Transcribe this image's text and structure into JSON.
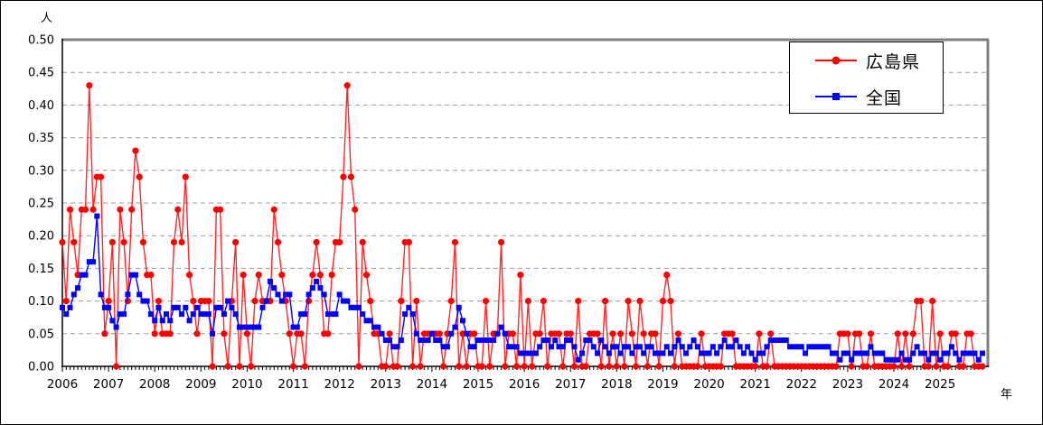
{
  "chart": {
    "y_unit_label": "人",
    "x_unit_label": "年",
    "y_tick_labels": [
      "0.00",
      "0.05",
      "0.10",
      "0.15",
      "0.20",
      "0.25",
      "0.30",
      "0.35",
      "0.40",
      "0.45",
      "0.50"
    ],
    "legend": [
      {
        "name": "広島県",
        "color": "#FF0000",
        "marker": "circle"
      },
      {
        "name": "全国",
        "color": "#0000FF",
        "marker": "square"
      }
    ],
    "frame_color": "#808080",
    "gridline_color": "#999999"
  },
  "chart_data": {
    "type": "line",
    "title": "",
    "xlabel": "年",
    "ylabel": "人",
    "ylim": [
      0.0,
      0.5
    ],
    "y_tick_step": 0.05,
    "grid": "dashed horizontal",
    "legend_position": "top-right inset box",
    "x_years": [
      2006,
      2007,
      2008,
      2009,
      2010,
      2011,
      2012,
      2013,
      2014,
      2015,
      2016,
      2017,
      2018,
      2019,
      2020,
      2021,
      2022,
      2023,
      2024,
      2025
    ],
    "x_granularity": "monthly",
    "series": [
      {
        "name": "広島県",
        "color": "#FF0000",
        "marker": "circle",
        "values_by_year": {
          "2006": [
            0.19,
            0.1,
            0.24,
            0.19,
            0.14,
            0.24,
            0.24,
            0.43,
            0.24,
            0.29,
            0.29,
            0.05
          ],
          "2007": [
            0.1,
            0.19,
            0.0,
            0.24,
            0.19,
            0.1,
            0.24,
            0.33,
            0.29,
            0.19,
            0.14,
            0.14
          ],
          "2008": [
            0.05,
            0.1,
            0.05,
            0.05,
            0.05,
            0.19,
            0.24,
            0.19,
            0.29,
            0.14,
            0.1,
            0.05
          ],
          "2009": [
            0.1,
            0.1,
            0.1,
            0.0,
            0.24,
            0.24,
            0.05,
            0.0,
            0.1,
            0.19,
            0.0,
            0.14
          ],
          "2010": [
            0.05,
            0.0,
            0.1,
            0.14,
            0.1,
            0.1,
            0.1,
            0.24,
            0.19,
            0.14,
            0.1,
            0.05
          ],
          "2011": [
            0.0,
            0.05,
            0.05,
            0.0,
            0.1,
            0.14,
            0.19,
            0.14,
            0.05,
            0.05,
            0.14,
            0.19
          ],
          "2012": [
            0.19,
            0.29,
            0.43,
            0.29,
            0.24,
            0.0,
            0.19,
            0.14,
            0.1,
            0.05,
            0.05,
            0.0
          ],
          "2013": [
            0.0,
            0.05,
            0.0,
            0.0,
            0.1,
            0.19,
            0.19,
            0.0,
            0.1,
            0.0,
            0.05,
            0.05
          ],
          "2014": [
            0.05,
            0.05,
            0.05,
            0.0,
            0.05,
            0.1,
            0.19,
            0.0,
            0.05,
            0.0,
            0.05,
            0.05
          ],
          "2015": [
            0.0,
            0.0,
            0.1,
            0.0,
            0.05,
            0.05,
            0.19,
            0.0,
            0.05,
            0.05,
            0.0,
            0.14
          ],
          "2016": [
            0.0,
            0.1,
            0.0,
            0.05,
            0.05,
            0.1,
            0.0,
            0.05,
            0.05,
            0.05,
            0.0,
            0.05
          ],
          "2017": [
            0.05,
            0.0,
            0.1,
            0.0,
            0.0,
            0.05,
            0.05,
            0.05,
            0.0,
            0.1,
            0.0,
            0.05
          ],
          "2018": [
            0.0,
            0.05,
            0.0,
            0.1,
            0.05,
            0.0,
            0.1,
            0.05,
            0.0,
            0.05,
            0.05,
            0.0
          ],
          "2019": [
            0.1,
            0.14,
            0.1,
            0.0,
            0.05,
            0.0,
            0.0,
            0.0,
            0.0,
            0.0,
            0.05,
            0.0
          ],
          "2020": [
            0.0,
            0.0,
            0.0,
            0.0,
            0.05,
            0.05,
            0.05,
            0.0,
            0.0,
            0.0,
            0.0,
            0.0
          ],
          "2021": [
            0.0,
            0.05,
            0.0,
            0.0,
            0.05,
            0.0,
            0.0,
            0.0,
            0.0,
            0.0,
            0.0,
            0.0
          ],
          "2022": [
            0.0,
            0.0,
            0.0,
            0.0,
            0.0,
            0.0,
            0.0,
            0.0,
            0.0,
            0.0,
            0.05,
            0.05
          ],
          "2023": [
            0.05,
            0.0,
            0.05,
            0.05,
            0.0,
            0.0,
            0.05,
            0.0,
            0.0,
            0.0,
            0.0,
            0.0
          ],
          "2024": [
            0.0,
            0.05,
            0.0,
            0.05,
            0.0,
            0.05,
            0.1,
            0.1,
            0.0,
            0.0,
            0.1,
            0.0
          ],
          "2025": [
            0.05,
            0.0,
            0.0,
            0.05,
            0.05,
            0.0,
            0.0,
            0.05,
            0.05,
            0.0,
            0.0,
            0.0
          ]
        }
      },
      {
        "name": "全国",
        "color": "#0000FF",
        "marker": "square",
        "values_by_year": {
          "2006": [
            0.09,
            0.08,
            0.09,
            0.11,
            0.12,
            0.14,
            0.14,
            0.16,
            0.16,
            0.23,
            0.11,
            0.09
          ],
          "2007": [
            0.09,
            0.07,
            0.06,
            0.08,
            0.08,
            0.11,
            0.14,
            0.14,
            0.11,
            0.1,
            0.1,
            0.08
          ],
          "2008": [
            0.07,
            0.09,
            0.07,
            0.08,
            0.07,
            0.09,
            0.09,
            0.08,
            0.09,
            0.07,
            0.08,
            0.09
          ],
          "2009": [
            0.08,
            0.08,
            0.08,
            0.05,
            0.09,
            0.09,
            0.08,
            0.1,
            0.09,
            0.08,
            0.06,
            0.06
          ],
          "2010": [
            0.06,
            0.06,
            0.06,
            0.06,
            0.09,
            0.1,
            0.13,
            0.12,
            0.11,
            0.1,
            0.11,
            0.11
          ],
          "2011": [
            0.06,
            0.06,
            0.08,
            0.08,
            0.11,
            0.12,
            0.13,
            0.12,
            0.11,
            0.08,
            0.08,
            0.08
          ],
          "2012": [
            0.11,
            0.1,
            0.1,
            0.09,
            0.09,
            0.09,
            0.08,
            0.07,
            0.07,
            0.06,
            0.06,
            0.05
          ],
          "2013": [
            0.04,
            0.04,
            0.03,
            0.03,
            0.04,
            0.08,
            0.09,
            0.08,
            0.05,
            0.04,
            0.04,
            0.04
          ],
          "2014": [
            0.05,
            0.04,
            0.04,
            0.03,
            0.03,
            0.05,
            0.06,
            0.09,
            0.07,
            0.05,
            0.03,
            0.03
          ],
          "2015": [
            0.04,
            0.04,
            0.04,
            0.04,
            0.04,
            0.05,
            0.06,
            0.05,
            0.03,
            0.03,
            0.03,
            0.02
          ],
          "2016": [
            0.02,
            0.02,
            0.02,
            0.02,
            0.03,
            0.04,
            0.04,
            0.03,
            0.04,
            0.03,
            0.03,
            0.04
          ],
          "2017": [
            0.04,
            0.03,
            0.01,
            0.02,
            0.04,
            0.04,
            0.03,
            0.02,
            0.04,
            0.03,
            0.02,
            0.03
          ],
          "2018": [
            0.03,
            0.02,
            0.03,
            0.03,
            0.02,
            0.03,
            0.03,
            0.02,
            0.03,
            0.03,
            0.02,
            0.02
          ],
          "2019": [
            0.02,
            0.03,
            0.02,
            0.03,
            0.04,
            0.03,
            0.02,
            0.03,
            0.04,
            0.03,
            0.02,
            0.02
          ],
          "2020": [
            0.02,
            0.03,
            0.02,
            0.03,
            0.04,
            0.03,
            0.03,
            0.04,
            0.03,
            0.02,
            0.03,
            0.02
          ],
          "2021": [
            0.01,
            0.02,
            0.02,
            0.03,
            0.04,
            0.04,
            0.04,
            0.04,
            0.04,
            0.03,
            0.03,
            0.03
          ],
          "2022": [
            0.03,
            0.02,
            0.03,
            0.03,
            0.03,
            0.03,
            0.03,
            0.03,
            0.02,
            0.02,
            0.01,
            0.02
          ],
          "2023": [
            0.02,
            0.01,
            0.02,
            0.02,
            0.02,
            0.02,
            0.03,
            0.02,
            0.02,
            0.02,
            0.01,
            0.01
          ],
          "2024": [
            0.01,
            0.01,
            0.02,
            0.01,
            0.01,
            0.02,
            0.03,
            0.02,
            0.02,
            0.01,
            0.02,
            0.02
          ],
          "2025": [
            0.01,
            0.02,
            0.02,
            0.03,
            0.02,
            0.01,
            0.02,
            0.02,
            0.02,
            0.02,
            0.01,
            0.02
          ]
        }
      }
    ]
  }
}
